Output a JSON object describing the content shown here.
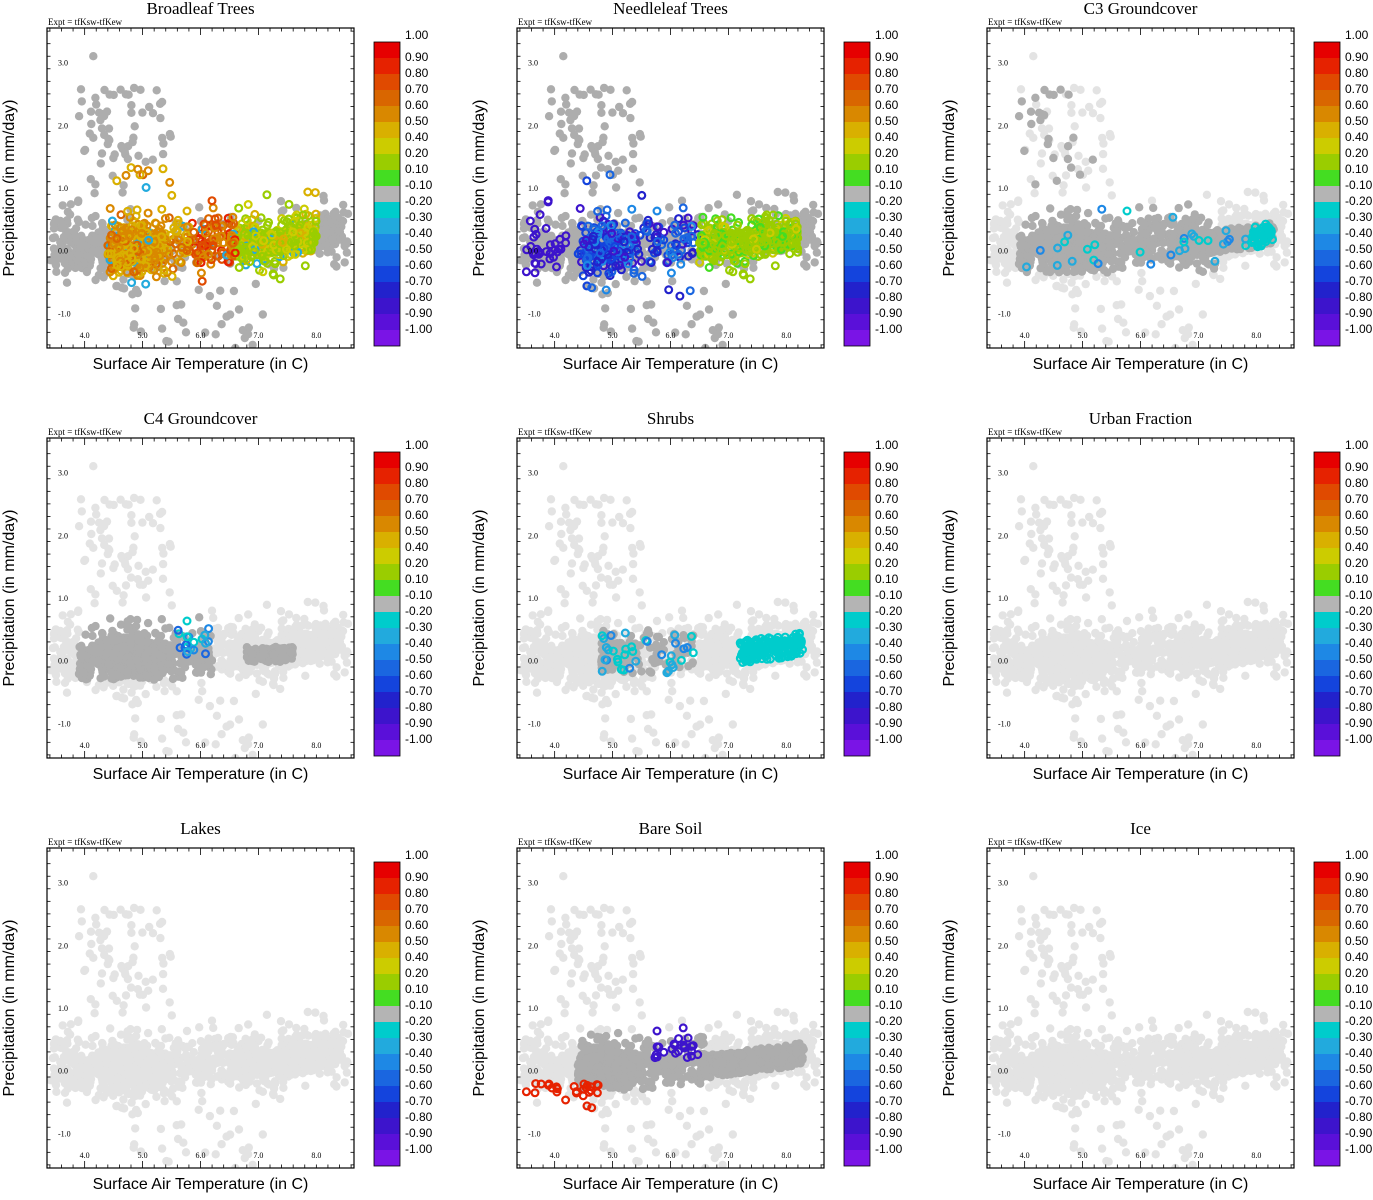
{
  "figure": {
    "expt_label": "Expt = tfKsw-tfKew",
    "xlabel": "Surface Air Temperature (in C)",
    "ylabel": "Precipitation (in mm/day)",
    "x_ticks": [
      "4.0",
      "5.0",
      "6.0",
      "7.0",
      "8.0"
    ],
    "y_ticks": [
      "-1.0",
      "0.0",
      "1.0",
      "2.0",
      "3.0"
    ],
    "colorbar_labels": [
      "1.00",
      "0.90",
      "0.80",
      "0.70",
      "0.60",
      "0.50",
      "0.40",
      "0.20",
      "0.10",
      "-0.10",
      "-0.20",
      "-0.30",
      "-0.40",
      "-0.50",
      "-0.60",
      "-0.70",
      "-0.80",
      "-0.90",
      "-1.00"
    ],
    "colorbar_colors": [
      "#e60000",
      "#e62200",
      "#e04a00",
      "#d96600",
      "#d98800",
      "#d9b000",
      "#cccc00",
      "#9acd00",
      "#44dd22",
      "#b4b4b4",
      "#00cccc",
      "#22aadd",
      "#1e88e5",
      "#1a66e0",
      "#1444dd",
      "#2222cc",
      "#3d14cc",
      "#5a10d9",
      "#7a14e6"
    ]
  },
  "chart_data": [
    {
      "type": "scatter",
      "title": "Broadleaf Trees",
      "mode": "broadleaf",
      "xlim": [
        3.35,
        8.65
      ],
      "ylim": [
        -1.55,
        3.55
      ],
      "xlabel": "Surface Air Temperature (in C)",
      "ylabel": "Precipitation (in mm/day)"
    },
    {
      "type": "scatter",
      "title": "Needleleaf Trees",
      "mode": "needleleaf",
      "xlim": [
        3.35,
        8.65
      ],
      "ylim": [
        -1.55,
        3.55
      ],
      "xlabel": "Surface Air Temperature (in C)",
      "ylabel": "Precipitation (in mm/day)"
    },
    {
      "type": "scatter",
      "title": "C3 Groundcover",
      "mode": "c3",
      "xlim": [
        3.35,
        8.65
      ],
      "ylim": [
        -1.55,
        3.55
      ],
      "xlabel": "Surface Air Temperature (in C)",
      "ylabel": "Precipitation (in mm/day)"
    },
    {
      "type": "scatter",
      "title": "C4 Groundcover",
      "mode": "c4",
      "xlim": [
        3.35,
        8.65
      ],
      "ylim": [
        -1.55,
        3.55
      ],
      "xlabel": "Surface Air Temperature (in C)",
      "ylabel": "Precipitation (in mm/day)"
    },
    {
      "type": "scatter",
      "title": "Shrubs",
      "mode": "shrubs",
      "xlim": [
        3.35,
        8.65
      ],
      "ylim": [
        -1.55,
        3.55
      ],
      "xlabel": "Surface Air Temperature (in C)",
      "ylabel": "Precipitation (in mm/day)"
    },
    {
      "type": "scatter",
      "title": "Urban Fraction",
      "mode": "none",
      "xlim": [
        3.35,
        8.65
      ],
      "ylim": [
        -1.55,
        3.55
      ],
      "xlabel": "Surface Air Temperature (in C)",
      "ylabel": "Precipitation (in mm/day)"
    },
    {
      "type": "scatter",
      "title": "Lakes",
      "mode": "none",
      "xlim": [
        3.35,
        8.65
      ],
      "ylim": [
        -1.55,
        3.55
      ],
      "xlabel": "Surface Air Temperature (in C)",
      "ylabel": "Precipitation (in mm/day)"
    },
    {
      "type": "scatter",
      "title": "Bare Soil",
      "mode": "baresoil",
      "xlim": [
        3.35,
        8.65
      ],
      "ylim": [
        -1.55,
        3.55
      ],
      "xlabel": "Surface Air Temperature (in C)",
      "ylabel": "Precipitation (in mm/day)"
    },
    {
      "type": "scatter",
      "title": "Ice",
      "mode": "none",
      "xlim": [
        3.35,
        8.65
      ],
      "ylim": [
        -1.55,
        3.55
      ],
      "xlabel": "Surface Air Temperature (in C)",
      "ylabel": "Precipitation (in mm/day)"
    }
  ]
}
